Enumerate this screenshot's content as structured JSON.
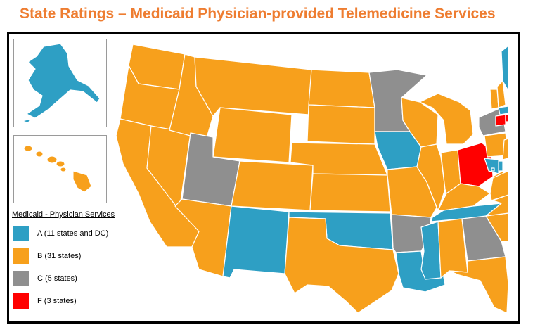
{
  "title": "State Ratings – Medicaid Physician-provided Telemedicine Services",
  "colors": {
    "title": "#ee7d31",
    "A": "#2e9fc4",
    "B": "#f7a01c",
    "C": "#8f8f8f",
    "F": "#ff0000"
  },
  "legend": {
    "title": "Medicaid - Physician Services",
    "items": [
      {
        "grade": "A",
        "label": "A (11 states and DC)",
        "color": "#2e9fc4"
      },
      {
        "grade": "B",
        "label": "B (31 states)",
        "color": "#f7a01c"
      },
      {
        "grade": "C",
        "label": "C (5 states)",
        "color": "#8f8f8f"
      },
      {
        "grade": "F",
        "label": "F (3 states)",
        "color": "#ff0000"
      }
    ]
  },
  "state_ratings": {
    "A": [
      "AK",
      "NM",
      "OK",
      "IA",
      "TN",
      "MS",
      "LA",
      "ME",
      "MA",
      "MD",
      "DE",
      "DC"
    ],
    "B": [
      "WA",
      "OR",
      "CA",
      "NV",
      "ID",
      "MT",
      "WY",
      "CO",
      "AZ",
      "ND",
      "SD",
      "NE",
      "KS",
      "TX",
      "MO",
      "WI",
      "IL",
      "MI",
      "IN",
      "KY",
      "WV",
      "VA",
      "NC",
      "SC",
      "AL",
      "FL",
      "PA",
      "NJ",
      "VT",
      "NH",
      "HI"
    ],
    "C": [
      "UT",
      "MN",
      "AR",
      "GA",
      "NY"
    ],
    "F": [
      "OH",
      "CT",
      "RI"
    ]
  }
}
